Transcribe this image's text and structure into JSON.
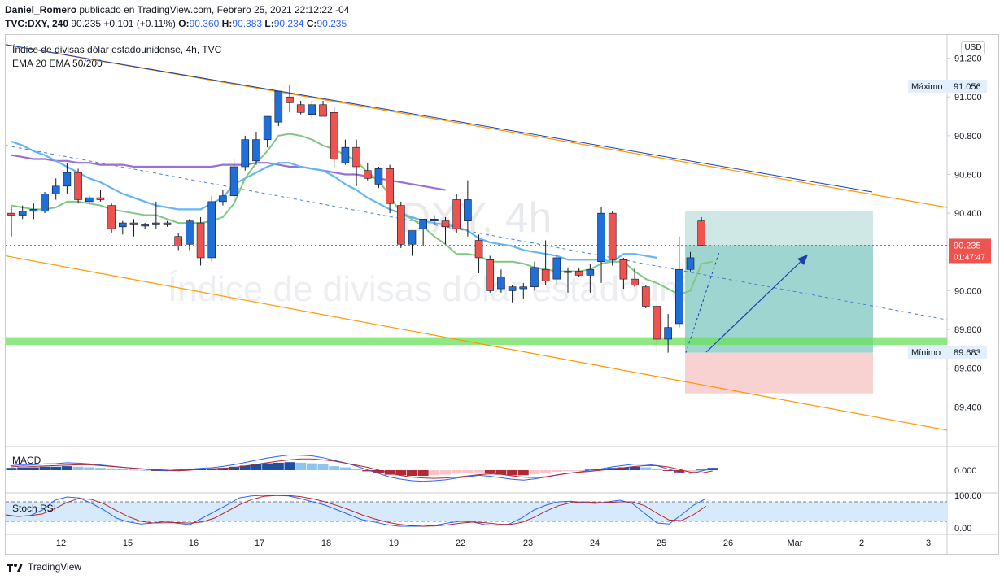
{
  "header": {
    "author": "Daniel_Romero",
    "published_text": "publicado en TradingView.com, Febrero 25, 2021 22:12:22 -04",
    "symbol": "TVC:DXY, 240",
    "last": "90.235",
    "change": "+0.101 (+0.11%)",
    "o_label": "O:",
    "o_value": "90.360",
    "h_label": "H:",
    "h_value": "90.383",
    "l_label": "L:",
    "l_value": "90.234",
    "c_label": "C:",
    "c_value": "90.235"
  },
  "legend": {
    "title": "Índice de divisas dólar estadounidense, 4h, TVC",
    "indicators": "EMA 20 EMA 50/200"
  },
  "watermark": {
    "line1": "DXY, 4h",
    "line2": "Índice de divisas dólar estadounidense"
  },
  "currency": "USD",
  "price_axis": {
    "ticks": [
      "91.200",
      "91.000",
      "90.800",
      "90.600",
      "90.400",
      "90.000",
      "89.800",
      "89.600",
      "89.400"
    ],
    "max_label": "Máximo",
    "max_value": "91.056",
    "min_label": "Mínimo",
    "min_value": "89.683",
    "current_price": "90.235",
    "countdown": "01:47:47"
  },
  "macd": {
    "label": "MACD",
    "tick": "0.000"
  },
  "stoch": {
    "label": "Stoch RSI",
    "tick_high": "100.00",
    "tick_low": "0.00"
  },
  "x_axis": {
    "labels": [
      "12",
      "15",
      "16",
      "17",
      "18",
      "19",
      "22",
      "23",
      "24",
      "25",
      "26",
      "Mar",
      "2",
      "3"
    ]
  },
  "footer": {
    "brand": "TradingView"
  },
  "colors": {
    "up": "#2962ff",
    "up_fill": "#1e6fd9",
    "down": "#ef5350",
    "ema20": "#81c784",
    "ema50": "#64b5f6",
    "ema200": "#9c6fd6",
    "channel": "#ff9800",
    "zone": "#69e05a"
  },
  "chart_data": {
    "type": "candlestick",
    "candles": [
      {
        "o": 90.4,
        "h": 90.43,
        "l": 90.28,
        "c": 90.39
      },
      {
        "o": 90.39,
        "h": 90.44,
        "l": 90.37,
        "c": 90.41
      },
      {
        "o": 90.41,
        "h": 90.45,
        "l": 90.37,
        "c": 90.42
      },
      {
        "o": 90.41,
        "h": 90.51,
        "l": 90.4,
        "c": 90.5
      },
      {
        "o": 90.5,
        "h": 90.58,
        "l": 90.47,
        "c": 90.54
      },
      {
        "o": 90.54,
        "h": 90.66,
        "l": 90.5,
        "c": 90.61
      },
      {
        "o": 90.61,
        "h": 90.63,
        "l": 90.45,
        "c": 90.47
      },
      {
        "o": 90.46,
        "h": 90.49,
        "l": 90.45,
        "c": 90.48
      },
      {
        "o": 90.48,
        "h": 90.52,
        "l": 90.46,
        "c": 90.47
      },
      {
        "o": 90.44,
        "h": 90.45,
        "l": 90.3,
        "c": 90.32
      },
      {
        "o": 90.33,
        "h": 90.36,
        "l": 90.29,
        "c": 90.35
      },
      {
        "o": 90.35,
        "h": 90.37,
        "l": 90.28,
        "c": 90.34
      },
      {
        "o": 90.34,
        "h": 90.35,
        "l": 90.32,
        "c": 90.34
      },
      {
        "o": 90.34,
        "h": 90.46,
        "l": 90.32,
        "c": 90.35
      },
      {
        "o": 90.35,
        "h": 90.36,
        "l": 90.33,
        "c": 90.34
      },
      {
        "o": 90.28,
        "h": 90.3,
        "l": 90.21,
        "c": 90.23
      },
      {
        "o": 90.24,
        "h": 90.37,
        "l": 90.21,
        "c": 90.36
      },
      {
        "o": 90.35,
        "h": 90.38,
        "l": 90.13,
        "c": 90.17
      },
      {
        "o": 90.17,
        "h": 90.49,
        "l": 90.15,
        "c": 90.46
      },
      {
        "o": 90.46,
        "h": 90.52,
        "l": 90.44,
        "c": 90.49
      },
      {
        "o": 90.49,
        "h": 90.68,
        "l": 90.47,
        "c": 90.64
      },
      {
        "o": 90.64,
        "h": 90.8,
        "l": 90.62,
        "c": 90.78
      },
      {
        "o": 90.67,
        "h": 90.82,
        "l": 90.65,
        "c": 90.78
      },
      {
        "o": 90.78,
        "h": 90.9,
        "l": 90.74,
        "c": 90.9
      },
      {
        "o": 90.87,
        "h": 91.03,
        "l": 90.85,
        "c": 91.03
      },
      {
        "o": 91.0,
        "h": 91.06,
        "l": 90.92,
        "c": 90.97
      },
      {
        "o": 90.96,
        "h": 90.98,
        "l": 90.91,
        "c": 90.92
      },
      {
        "o": 90.91,
        "h": 90.98,
        "l": 90.89,
        "c": 90.96
      },
      {
        "o": 90.96,
        "h": 90.98,
        "l": 90.91,
        "c": 90.9
      },
      {
        "o": 90.92,
        "h": 90.95,
        "l": 90.64,
        "c": 90.68
      },
      {
        "o": 90.66,
        "h": 90.78,
        "l": 90.65,
        "c": 90.74
      },
      {
        "o": 90.74,
        "h": 90.78,
        "l": 90.54,
        "c": 90.64
      },
      {
        "o": 90.62,
        "h": 90.66,
        "l": 90.57,
        "c": 90.58
      },
      {
        "o": 90.55,
        "h": 90.64,
        "l": 90.53,
        "c": 90.63
      },
      {
        "o": 90.63,
        "h": 90.65,
        "l": 90.4,
        "c": 90.45
      },
      {
        "o": 90.44,
        "h": 90.46,
        "l": 90.22,
        "c": 90.24
      },
      {
        "o": 90.24,
        "h": 90.31,
        "l": 90.18,
        "c": 90.31
      },
      {
        "o": 90.32,
        "h": 90.37,
        "l": 90.23,
        "c": 90.37
      },
      {
        "o": 90.36,
        "h": 90.39,
        "l": 90.34,
        "c": 90.37
      },
      {
        "o": 90.36,
        "h": 90.38,
        "l": 90.24,
        "c": 90.33
      },
      {
        "o": 90.47,
        "h": 90.5,
        "l": 90.3,
        "c": 90.32
      },
      {
        "o": 90.36,
        "h": 90.57,
        "l": 90.28,
        "c": 90.47
      },
      {
        "o": 90.26,
        "h": 90.29,
        "l": 90.09,
        "c": 90.17
      },
      {
        "o": 90.16,
        "h": 90.18,
        "l": 89.99,
        "c": 90.0
      },
      {
        "o": 90.01,
        "h": 90.11,
        "l": 89.99,
        "c": 90.07
      },
      {
        "o": 90.0,
        "h": 90.03,
        "l": 89.94,
        "c": 90.02
      },
      {
        "o": 90.01,
        "h": 90.04,
        "l": 89.96,
        "c": 90.02
      },
      {
        "o": 90.02,
        "h": 90.15,
        "l": 90.0,
        "c": 90.12
      },
      {
        "o": 90.11,
        "h": 90.26,
        "l": 90.03,
        "c": 90.05
      },
      {
        "o": 90.06,
        "h": 90.19,
        "l": 90.03,
        "c": 90.17
      },
      {
        "o": 90.1,
        "h": 90.12,
        "l": 89.99,
        "c": 90.1
      },
      {
        "o": 90.1,
        "h": 90.12,
        "l": 90.07,
        "c": 90.08
      },
      {
        "o": 90.08,
        "h": 90.14,
        "l": 89.99,
        "c": 90.11
      },
      {
        "o": 90.15,
        "h": 90.43,
        "l": 90.04,
        "c": 90.4
      },
      {
        "o": 90.4,
        "h": 90.41,
        "l": 90.13,
        "c": 90.16
      },
      {
        "o": 90.16,
        "h": 90.17,
        "l": 90.01,
        "c": 90.06
      },
      {
        "o": 90.06,
        "h": 90.12,
        "l": 90.02,
        "c": 90.03
      },
      {
        "o": 90.02,
        "h": 90.03,
        "l": 89.91,
        "c": 89.92
      },
      {
        "o": 89.92,
        "h": 89.94,
        "l": 89.69,
        "c": 89.75
      },
      {
        "o": 89.75,
        "h": 89.88,
        "l": 89.68,
        "c": 89.81
      },
      {
        "o": 89.83,
        "h": 90.28,
        "l": 89.81,
        "c": 90.11
      },
      {
        "o": 90.11,
        "h": 90.2,
        "l": 90.1,
        "c": 90.17
      },
      {
        "o": 90.36,
        "h": 90.38,
        "l": 90.23,
        "c": 90.235
      }
    ],
    "ema20": [
      90.44,
      90.43,
      90.42,
      90.42,
      90.43,
      90.46,
      90.46,
      90.45,
      90.44,
      90.42,
      90.41,
      90.4,
      90.39,
      90.39,
      90.37,
      90.35,
      90.35,
      90.35,
      90.36,
      90.38,
      90.45,
      90.58,
      90.66,
      90.72,
      90.8,
      90.81,
      90.8,
      90.78,
      90.75,
      90.73,
      90.7,
      90.67,
      90.61,
      90.57,
      90.49,
      90.4,
      90.37,
      90.33,
      90.28,
      90.24,
      90.19,
      90.19,
      90.18,
      90.15,
      90.15,
      90.15,
      90.14,
      90.12,
      90.11,
      90.1,
      90.1,
      90.1,
      90.11,
      90.14,
      90.15,
      90.15,
      90.1,
      90.06,
      90.04,
      90.01,
      89.98,
      90.0,
      90.14,
      90.15
    ],
    "ema50": [
      90.77,
      90.75,
      90.72,
      90.7,
      90.67,
      90.64,
      90.61,
      90.58,
      90.56,
      90.53,
      90.5,
      90.48,
      90.46,
      90.44,
      90.43,
      90.42,
      90.42,
      90.42,
      90.45,
      90.48,
      90.55,
      90.58,
      90.61,
      90.64,
      90.66,
      90.66,
      90.64,
      90.63,
      90.62,
      90.59,
      90.55,
      90.52,
      90.48,
      90.45,
      90.42,
      90.4,
      90.38,
      90.36,
      90.35,
      90.34,
      90.33,
      90.31,
      90.27,
      90.25,
      90.24,
      90.23,
      90.21,
      90.2,
      90.19,
      90.18,
      90.16,
      90.16,
      90.16,
      90.16,
      90.15,
      90.19,
      90.19,
      90.18,
      90.17
    ],
    "ema200": [
      90.7,
      90.69,
      90.68,
      90.68,
      90.67,
      90.67,
      90.66,
      90.66,
      90.65,
      90.65,
      90.65,
      90.64,
      90.64,
      90.64,
      90.64,
      90.64,
      90.64,
      90.64,
      90.64,
      90.65,
      90.65,
      90.65,
      90.66,
      90.66,
      90.65,
      90.64,
      90.64,
      90.63,
      90.62,
      90.61,
      90.6,
      90.6,
      90.59,
      90.58,
      90.57,
      90.56,
      90.55,
      90.54,
      90.53,
      90.52
    ],
    "levels": {
      "max": 91.056,
      "min": 89.683,
      "current": 90.235,
      "support_zone": [
        89.72,
        89.76
      ]
    },
    "position": {
      "entry": 89.68,
      "target": 90.41,
      "stop": 89.47
    },
    "ylim": [
      89.2,
      91.32
    ],
    "x_labels": [
      "12",
      "15",
      "16",
      "17",
      "18",
      "19",
      "22",
      "23",
      "24",
      "25",
      "26",
      "Mar",
      "2",
      "3"
    ],
    "macd_hist": [
      0.04,
      0.05,
      0.05,
      0.06,
      0.06,
      0.07,
      0.06,
      0.05,
      0.04,
      0.03,
      0.02,
      0.01,
      0.005,
      -0.005,
      -0.01,
      0.01,
      0.015,
      0.02,
      0.025,
      0.04,
      0.06,
      0.08,
      0.1,
      0.12,
      0.13,
      0.14,
      0.13,
      0.12,
      0.1,
      0.07,
      0.05,
      0.02,
      -0.02,
      -0.05,
      -0.08,
      -0.09,
      -0.1,
      -0.1,
      -0.09,
      -0.08,
      -0.06,
      -0.05,
      -0.04,
      -0.06,
      -0.08,
      -0.09,
      -0.09,
      -0.07,
      -0.05,
      -0.03,
      -0.02,
      -0.01,
      0.01,
      0.02,
      0.04,
      0.05,
      0.06,
      0.05,
      0.03,
      -0.01,
      -0.04,
      -0.03,
      0.01,
      0.04
    ],
    "stoch_k": [
      40,
      35,
      38,
      55,
      85,
      95,
      92,
      75,
      55,
      30,
      18,
      12,
      15,
      20,
      14,
      10,
      30,
      50,
      70,
      92,
      98,
      100,
      100,
      98,
      90,
      80,
      70,
      55,
      40,
      25,
      18,
      10,
      5,
      5,
      5,
      8,
      15,
      20,
      18,
      10,
      8,
      12,
      30,
      55,
      70,
      80,
      82,
      78,
      75,
      80,
      85,
      75,
      45,
      15,
      12,
      40,
      70,
      90
    ]
  }
}
